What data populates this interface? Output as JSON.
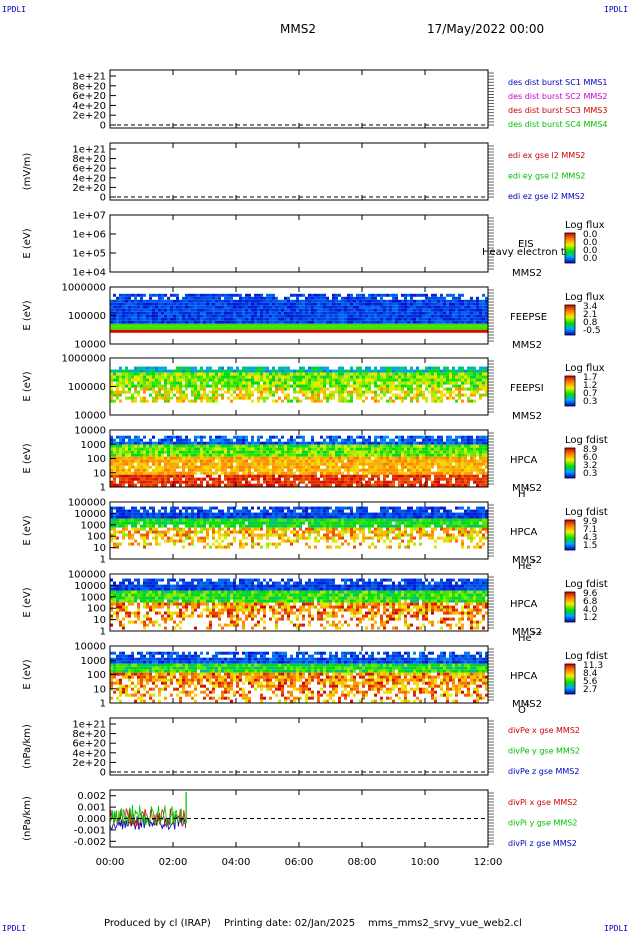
{
  "corners": {
    "tl": "IPDLI",
    "tr": "IPDLI",
    "bl": "IPDLI",
    "br": "IPDLI"
  },
  "header": {
    "spacecraft": "MMS2",
    "datetime": "17/May/2022 00:00"
  },
  "footer": {
    "produced_by": "Produced by cl (IRAP)",
    "printing_date": "Printing date: 02/Jan/2025",
    "file_name": "mms_mms2_srvy_vue_web2.cl"
  },
  "colors": {
    "mms1": "#0000c0",
    "mms2": "#d000d0",
    "mms3": "#d00000",
    "mms4": "#00c000",
    "x": "#d00000",
    "y": "#00c000",
    "z": "#0000c0"
  },
  "chart_data": {
    "type": "multi-panel",
    "x_ticks": [
      "00:00",
      "02:00",
      "04:00",
      "06:00",
      "08:00",
      "10:00",
      "12:00"
    ],
    "x_range": [
      "00:00",
      "12:00"
    ],
    "panels": [
      {
        "id": "p1",
        "type": "line",
        "ylabel": "",
        "y_ticks": [
          "1e+21",
          "8e+20",
          "6e+20",
          "4e+20",
          "2e+20",
          "0"
        ],
        "dashed_zero": true,
        "legend": [
          {
            "label": "des dist burst SC1 MMS1",
            "color": "#0000c0"
          },
          {
            "label": "des dist burst SC2 MMS2",
            "color": "#d000d0"
          },
          {
            "label": "des dist burst SC3 MMS3",
            "color": "#d00000"
          },
          {
            "label": "des dist burst SC4 MMS4",
            "color": "#00c000"
          }
        ]
      },
      {
        "id": "p2",
        "type": "line",
        "ylabel": "(mV/m)",
        "y_ticks": [
          "1e+21",
          "8e+20",
          "6e+20",
          "4e+20",
          "2e+20",
          "0"
        ],
        "dashed_zero": true,
        "legend": [
          {
            "label": "edi ex gse l2 MMS2",
            "color": "#d00000"
          },
          {
            "label": "edi ey gse l2 MMS2",
            "color": "#00c000"
          },
          {
            "label": "edi ez gse l2 MMS2",
            "color": "#0000c0"
          }
        ]
      },
      {
        "id": "p3",
        "type": "heatmap",
        "ylabel": "E (eV)",
        "y_ticks": [
          "1e+07",
          "1e+06",
          "1e+05",
          "1e+04"
        ],
        "instrument": [
          "EIS",
          "MMS2"
        ],
        "overlay_text": "Heavy electron to",
        "colorbar": {
          "title": "Log flux",
          "values": [
            "0.0",
            "0.0",
            "0.0",
            "0.0"
          ]
        }
      },
      {
        "id": "p4",
        "type": "heatmap",
        "ylabel": "E (eV)",
        "y_ticks": [
          "1000000",
          "100000",
          "10000"
        ],
        "instrument": [
          "FEEPSE",
          "MMS2"
        ],
        "colorbar": {
          "title": "Log flux",
          "values": [
            "3.4",
            "2.1",
            "0.8",
            "-0.5"
          ]
        }
      },
      {
        "id": "p5",
        "type": "heatmap",
        "ylabel": "E (eV)",
        "y_ticks": [
          "1000000",
          "100000",
          "10000"
        ],
        "instrument": [
          "FEEPSI",
          "MMS2"
        ],
        "colorbar": {
          "title": "Log flux",
          "values": [
            "1.7",
            "1.2",
            "0.7",
            "0.3"
          ]
        }
      },
      {
        "id": "p6",
        "type": "heatmap",
        "ylabel": "E (eV)",
        "y_ticks": [
          "10000",
          "1000",
          "100",
          "10",
          "1"
        ],
        "instrument": [
          "HPCA",
          "MMS2"
        ],
        "species": "H",
        "species_sup": "+",
        "colorbar": {
          "title": "Log fdist",
          "values": [
            "8.9",
            "6.0",
            "3.2",
            "0.3"
          ]
        }
      },
      {
        "id": "p7",
        "type": "heatmap",
        "ylabel": "E (eV)",
        "y_ticks": [
          "100000",
          "10000",
          "1000",
          "100",
          "10",
          "1"
        ],
        "instrument": [
          "HPCA",
          "MMS2"
        ],
        "species": "He",
        "species_sup": "+",
        "colorbar": {
          "title": "Log fdist",
          "values": [
            "9.9",
            "7.1",
            "4.3",
            "1.5"
          ]
        }
      },
      {
        "id": "p8",
        "type": "heatmap",
        "ylabel": "E (eV)",
        "y_ticks": [
          "100000",
          "10000",
          "1000",
          "100",
          "10",
          "1"
        ],
        "instrument": [
          "HPCA",
          "MMS2"
        ],
        "species": "He",
        "species_sup": "++",
        "colorbar": {
          "title": "Log fdist",
          "values": [
            "9.6",
            "6.8",
            "4.0",
            "1.2"
          ]
        }
      },
      {
        "id": "p9",
        "type": "heatmap",
        "ylabel": "E (eV)",
        "y_ticks": [
          "10000",
          "1000",
          "100",
          "10",
          "1"
        ],
        "instrument": [
          "HPCA",
          "MMS2"
        ],
        "species": "O",
        "species_sup": "+",
        "colorbar": {
          "title": "Log fdist",
          "values": [
            "11.3",
            "8.4",
            "5.6",
            "2.7"
          ]
        }
      },
      {
        "id": "p10",
        "type": "line",
        "ylabel": "(nPa/km)",
        "y_ticks": [
          "1e+21",
          "8e+20",
          "6e+20",
          "4e+20",
          "2e+20",
          "0"
        ],
        "dashed_zero": true,
        "legend": [
          {
            "label": "divPe x gse MMS2",
            "color": "#d00000"
          },
          {
            "label": "divPe y gse MMS2",
            "color": "#00c000"
          },
          {
            "label": "divPe z gse MMS2",
            "color": "#0000c0"
          }
        ]
      },
      {
        "id": "p11",
        "type": "line",
        "ylabel": "(nPa/km)",
        "y_ticks": [
          "0.002",
          "0.001",
          "0.000",
          "-0.001",
          "-0.002"
        ],
        "y_range": [
          -0.0025,
          0.0025
        ],
        "dashed_zero": true,
        "data_end": "02:25",
        "legend": [
          {
            "label": "divPi x gse MMS2",
            "color": "#d00000"
          },
          {
            "label": "divPi y gse MMS2",
            "color": "#00c000"
          },
          {
            "label": "divPi z gse MMS2",
            "color": "#0000c0"
          }
        ]
      }
    ]
  }
}
